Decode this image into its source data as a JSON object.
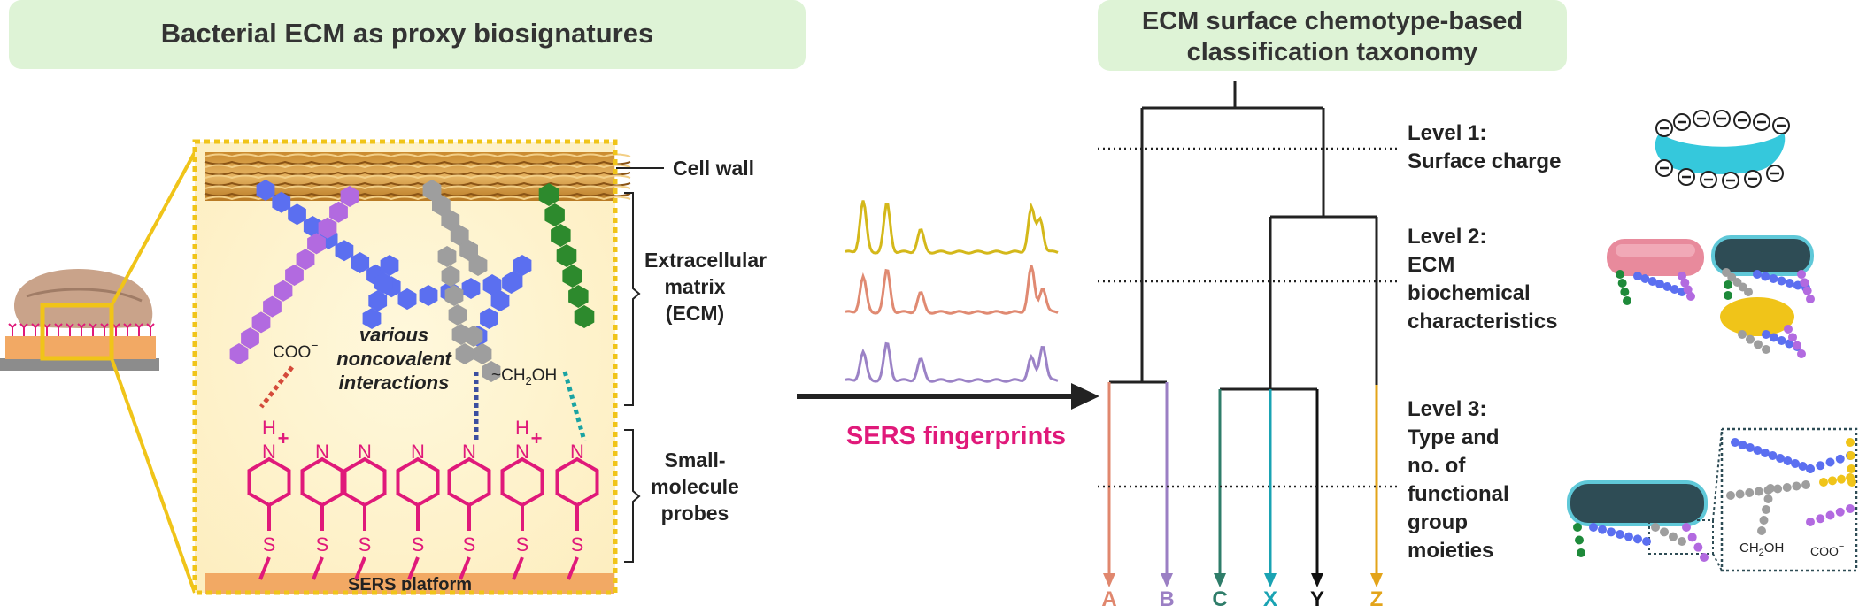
{
  "left_panel": {
    "title": "Bacterial ECM as proxy biosignatures",
    "labels": {
      "cell_wall": "Cell wall",
      "ecm_line1": "Extracellular",
      "ecm_line2": "matrix",
      "ecm_line3": "(ECM)",
      "probes_line1": "Small-",
      "probes_line2": "molecule",
      "probes_line3": "probes",
      "coo": "COO",
      "coo_sup": "−",
      "ch2oh": "~CH",
      "ch2oh_sub": "2",
      "ch2oh_end": "OH",
      "various_line1": "various",
      "various_line2": "noncovalent",
      "various_line3": "interactions",
      "platform": "SERS platform",
      "atom_n": "N",
      "atom_h": "H",
      "atom_plus": "+",
      "atom_s": "S"
    }
  },
  "middle_panel": {
    "caption": "SERS fingerprints",
    "spectra_colors": [
      "#d4b81a",
      "#e08a72",
      "#9b82c6"
    ]
  },
  "right_panel": {
    "title_line1": "ECM surface chemotype-based",
    "title_line2": "classification taxonomy",
    "levels": {
      "l1_line1": "Level 1:",
      "l1_line2": "Surface charge",
      "l2_line1": "Level 2:",
      "l2_line2": "ECM",
      "l2_line3": "biochemical",
      "l2_line4": "characteristics",
      "l3_line1": "Level 3:",
      "l3_line2": "Type and",
      "l3_line3": "no. of",
      "l3_line4": "functional",
      "l3_line5": "group",
      "l3_line6": "moieties"
    },
    "leaves": [
      {
        "label": "A",
        "color": "#e0876e"
      },
      {
        "label": "B",
        "color": "#9b7fc4"
      },
      {
        "label": "C",
        "color": "#2f7d6a"
      },
      {
        "label": "X",
        "color": "#1aa3b3"
      },
      {
        "label": "Y",
        "color": "#111111"
      },
      {
        "label": "Z",
        "color": "#e3a41a"
      }
    ],
    "inset": {
      "ch2oh": "CH",
      "ch2oh_sub": "2",
      "ch2oh_end": "OH",
      "coo": "COO",
      "coo_sup": "−",
      "minus": "⊖"
    }
  },
  "colors": {
    "header_bg": "#def3d6",
    "magenta": "#e0197a",
    "platform": "#f2a964",
    "frame": "#f0c419"
  }
}
